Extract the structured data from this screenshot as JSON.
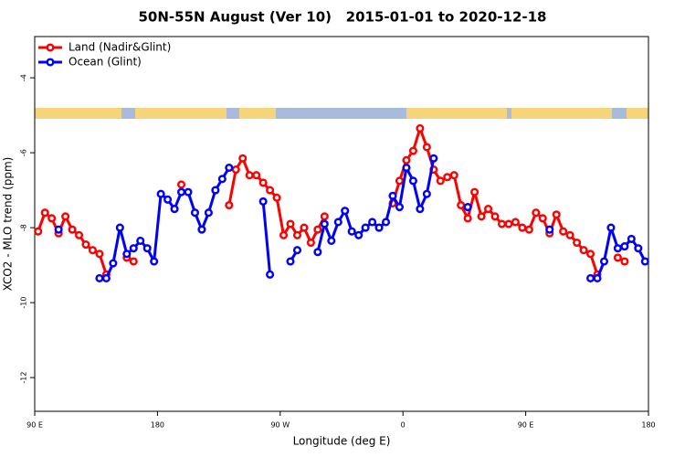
{
  "chart_data": {
    "type": "line",
    "title": "50N-55N August (Ver 10)   2015-01-01 to 2020-12-18",
    "x_label": "Longitude (deg E)",
    "y_label": "XCO2 - MLO trend (ppm)",
    "x": [
      92.5,
      97.5,
      102.5,
      107.5,
      112.5,
      117.5,
      122.5,
      127.5,
      132.5,
      137.5,
      142.5,
      147.5,
      152.5,
      157.5,
      162.5,
      167.5,
      172.5,
      177.5,
      182.5,
      187.5,
      192.5,
      197.5,
      202.5,
      207.5,
      212.5,
      217.5,
      222.5,
      227.5,
      232.5,
      237.5,
      242.5,
      247.5,
      252.5,
      257.5,
      262.5,
      267.5,
      272.5,
      277.5,
      282.5,
      287.5,
      292.5,
      297.5,
      302.5,
      307.5,
      312.5,
      317.5,
      322.5,
      327.5,
      332.5,
      337.5,
      342.5,
      347.5,
      352.5,
      357.5,
      362.5,
      367.5,
      372.5,
      377.5,
      382.5,
      387.5,
      392.5,
      397.5,
      402.5,
      407.5,
      412.5,
      417.5,
      422.5,
      427.5,
      432.5,
      437.5,
      442.5,
      447.5,
      452.5,
      457.5,
      462.5,
      467.5,
      472.5,
      477.5,
      482.5,
      487.5,
      492.5,
      497.5,
      502.5,
      507.5,
      512.5,
      517.5,
      522.5,
      527.5,
      532.5,
      537.5
    ],
    "series": [
      {
        "name": "Land (Nadir&Glint)",
        "color": "#ff0000",
        "values": [
          -8.1,
          -7.6,
          -7.75,
          -8.15,
          -7.7,
          -8.05,
          -8.2,
          -8.45,
          -8.6,
          -8.7,
          -9.25,
          null,
          null,
          -8.8,
          -8.9,
          null,
          null,
          null,
          null,
          null,
          null,
          -6.85,
          null,
          null,
          null,
          null,
          null,
          null,
          -7.4,
          -6.45,
          -6.15,
          -6.6,
          -6.6,
          -6.8,
          -7.0,
          -7.2,
          -8.2,
          -7.9,
          -8.2,
          -8.0,
          -8.4,
          -8.05,
          -7.7,
          null,
          null,
          null,
          null,
          null,
          null,
          null,
          null,
          null,
          -7.35,
          -6.75,
          -6.2,
          -5.95,
          -5.35,
          -5.85,
          -6.45,
          -6.75,
          -6.65,
          -6.6,
          -7.4,
          -7.75,
          -7.05,
          -7.7,
          -7.5,
          -7.7,
          -7.9,
          -7.9,
          -7.85,
          -8.0,
          -8.05,
          -7.6,
          -7.75,
          -8.15,
          -7.65,
          -8.1,
          -8.2,
          -8.4,
          -8.6,
          -8.7,
          -9.25,
          null,
          null,
          -8.8,
          -8.9,
          null,
          null,
          null
        ]
      },
      {
        "name": "Ocean (Glint)",
        "color": "#0000ff",
        "values": [
          null,
          null,
          null,
          -8.05,
          null,
          null,
          null,
          null,
          null,
          -9.35,
          -9.35,
          -8.95,
          -8.0,
          -8.7,
          -8.55,
          -8.35,
          -8.55,
          -8.9,
          -7.1,
          -7.25,
          -7.5,
          -7.05,
          -7.05,
          -7.6,
          -8.05,
          -7.6,
          -7.0,
          -6.7,
          -6.4,
          null,
          null,
          null,
          null,
          -7.3,
          -9.25,
          null,
          null,
          -8.9,
          -8.6,
          null,
          null,
          -8.65,
          -7.9,
          -8.35,
          -7.85,
          -7.55,
          -8.1,
          -8.2,
          -8.0,
          -7.85,
          -8.0,
          -7.85,
          -7.15,
          -7.45,
          -6.4,
          -6.75,
          -7.5,
          -7.1,
          -6.15,
          null,
          null,
          null,
          null,
          -7.45,
          null,
          null,
          null,
          null,
          null,
          null,
          null,
          null,
          null,
          null,
          null,
          -8.05,
          null,
          null,
          null,
          null,
          null,
          -9.35,
          -9.35,
          -8.9,
          -8.0,
          -8.55,
          -8.5,
          -8.3,
          -8.55,
          -8.9
        ]
      }
    ],
    "xlim": [
      90,
      540
    ],
    "xticks": [
      {
        "value": 90,
        "label": "90 E"
      },
      {
        "value": 180,
        "label": "180"
      },
      {
        "value": 270,
        "label": "90 W"
      },
      {
        "value": 360,
        "label": "0"
      },
      {
        "value": 450,
        "label": "90 E"
      },
      {
        "value": 540,
        "label": "180"
      }
    ],
    "ylim": [
      -12.9,
      -2.9
    ],
    "yticks": [
      -4,
      -6,
      -8,
      -10,
      -12
    ],
    "legend": "top-left"
  }
}
